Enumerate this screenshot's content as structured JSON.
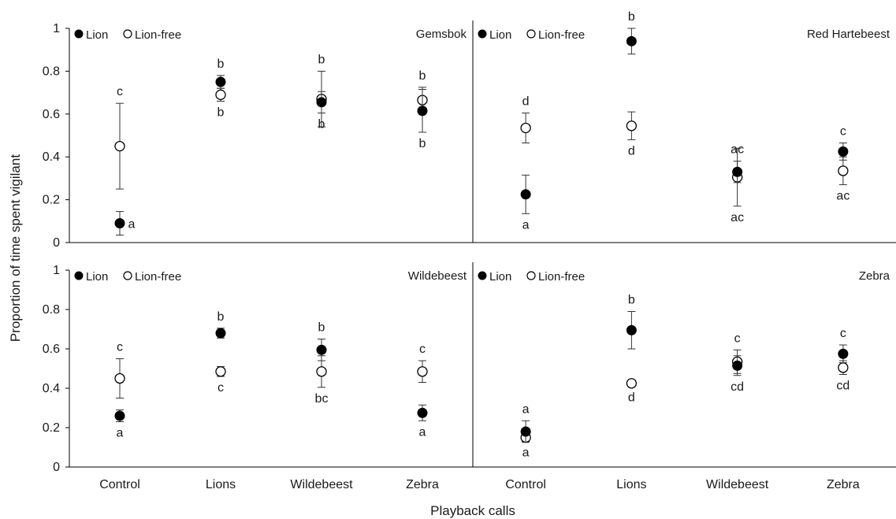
{
  "chart_data": {
    "type": "scatter",
    "ylabel": "Proportion of time spent vigilant",
    "xlabel": "Playback calls",
    "categories": [
      "Control",
      "Lions",
      "Wildebeest",
      "Zebra"
    ],
    "yticks": [
      "0",
      "0.2",
      "0.4",
      "0.6",
      "0.8",
      "1"
    ],
    "ylim": [
      0,
      1
    ],
    "legend": {
      "position": "top-left",
      "lion_label": "Lion",
      "lionfree_label": "Lion-free"
    },
    "series_style": {
      "lion": "filled-circle",
      "lionfree": "open-circle",
      "color": "#000000"
    },
    "panels": [
      {
        "title": "Gemsbok",
        "lion": [
          {
            "value": 0.09,
            "err": 0.055,
            "letter": "a"
          },
          {
            "value": 0.75,
            "err": 0.03,
            "letter": "b"
          },
          {
            "value": 0.655,
            "err": 0.05,
            "letter": "b"
          },
          {
            "value": 0.615,
            "err": 0.1,
            "letter": "b"
          }
        ],
        "lionfree": [
          {
            "value": 0.45,
            "err": 0.2,
            "letter": "c"
          },
          {
            "value": 0.69,
            "err": 0.03,
            "letter": "b"
          },
          {
            "value": 0.67,
            "err": 0.13,
            "letter": "b"
          },
          {
            "value": 0.665,
            "err": 0.06,
            "letter": "b"
          }
        ]
      },
      {
        "title": "Red Hartebeest",
        "lion": [
          {
            "value": 0.225,
            "err": 0.09,
            "letter": "a"
          },
          {
            "value": 0.94,
            "err": 0.06,
            "letter": "b"
          },
          {
            "value": 0.33,
            "err": 0.05,
            "letter": "ac"
          },
          {
            "value": 0.425,
            "err": 0.04,
            "letter": "c"
          }
        ],
        "lionfree": [
          {
            "value": 0.535,
            "err": 0.07,
            "letter": "d"
          },
          {
            "value": 0.545,
            "err": 0.065,
            "letter": "d"
          },
          {
            "value": 0.305,
            "err": 0.135,
            "letter": "ac"
          },
          {
            "value": 0.335,
            "err": 0.065,
            "letter": "ac"
          }
        ]
      },
      {
        "title": "Wildebeest",
        "lion": [
          {
            "value": 0.26,
            "err": 0.03,
            "letter": "a"
          },
          {
            "value": 0.68,
            "err": 0.025,
            "letter": "b"
          },
          {
            "value": 0.595,
            "err": 0.055,
            "letter": "b"
          },
          {
            "value": 0.275,
            "err": 0.04,
            "letter": "a"
          }
        ],
        "lionfree": [
          {
            "value": 0.45,
            "err": 0.1,
            "letter": "c"
          },
          {
            "value": 0.485,
            "err": 0.025,
            "letter": "c"
          },
          {
            "value": 0.485,
            "err": 0.08,
            "letter": "bc"
          },
          {
            "value": 0.485,
            "err": 0.055,
            "letter": "c"
          }
        ]
      },
      {
        "title": "Zebra",
        "lion": [
          {
            "value": 0.18,
            "err": 0.055,
            "letter": "a"
          },
          {
            "value": 0.695,
            "err": 0.095,
            "letter": "b"
          },
          {
            "value": 0.515,
            "err": 0.05,
            "letter": "cd"
          },
          {
            "value": 0.575,
            "err": 0.045,
            "letter": "c"
          }
        ],
        "lionfree": [
          {
            "value": 0.15,
            "err": 0.02,
            "letter": "a"
          },
          {
            "value": 0.425,
            "err": 0.015,
            "letter": "d"
          },
          {
            "value": 0.535,
            "err": 0.06,
            "letter": "c"
          },
          {
            "value": 0.505,
            "err": 0.035,
            "letter": "cd"
          }
        ]
      }
    ]
  }
}
